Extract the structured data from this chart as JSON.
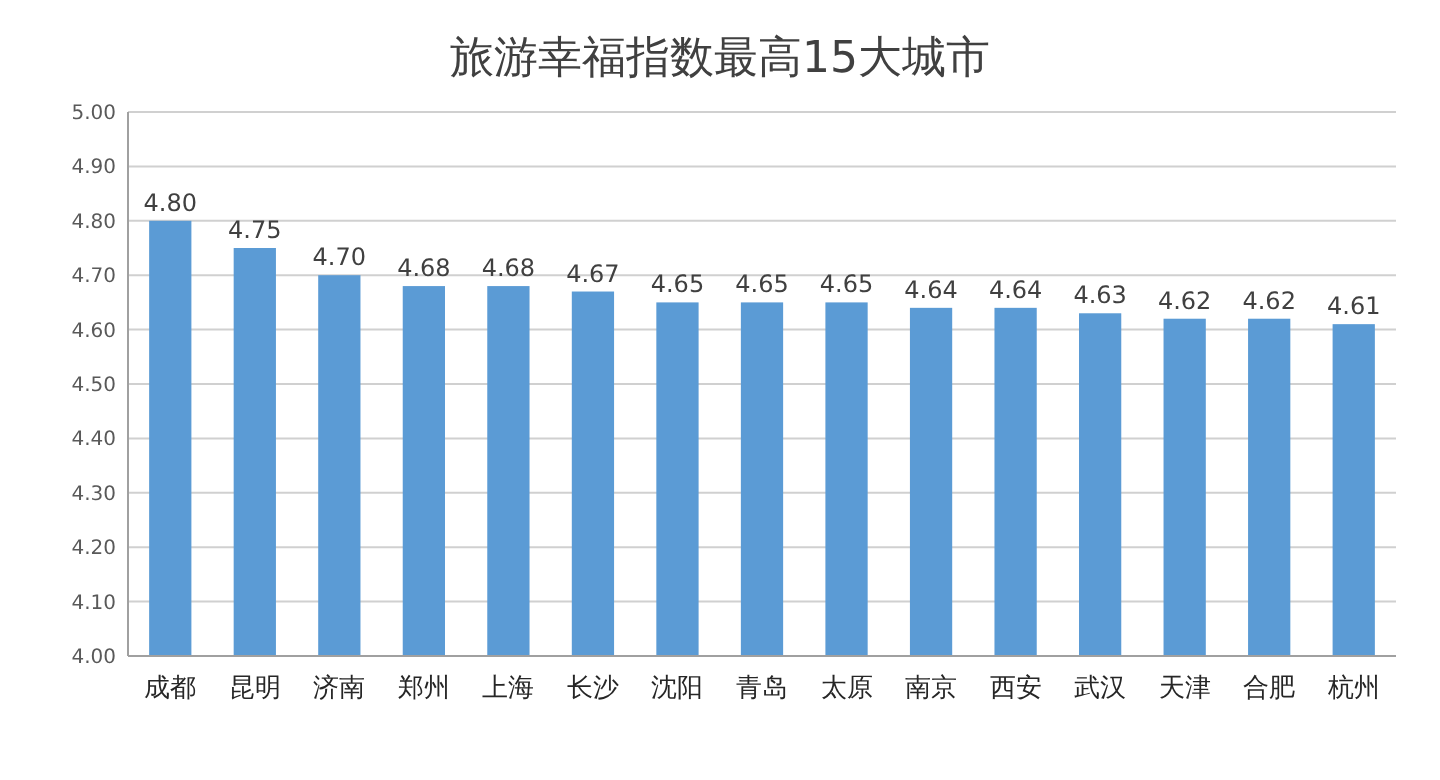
{
  "chart_data": {
    "type": "bar",
    "title": "旅游幸福指数最高15大城市",
    "categories": [
      "成都",
      "昆明",
      "济南",
      "郑州",
      "上海",
      "长沙",
      "沈阳",
      "青岛",
      "太原",
      "南京",
      "西安",
      "武汉",
      "天津",
      "合肥",
      "杭州"
    ],
    "values": [
      4.8,
      4.75,
      4.7,
      4.68,
      4.68,
      4.67,
      4.65,
      4.65,
      4.65,
      4.64,
      4.64,
      4.63,
      4.62,
      4.62,
      4.61
    ],
    "value_labels": [
      "4.80",
      "4.75",
      "4.70",
      "4.68",
      "4.68",
      "4.67",
      "4.65",
      "4.65",
      "4.65",
      "4.64",
      "4.64",
      "4.63",
      "4.62",
      "4.62",
      "4.61"
    ],
    "color": "#5b9bd5",
    "ylim": [
      4,
      5
    ],
    "yticks": [
      {
        "value": 4,
        "label": "4.00"
      },
      {
        "value": 4.1,
        "label": "4.10"
      },
      {
        "value": 4.2,
        "label": "4.20"
      },
      {
        "value": 4.3,
        "label": "4.30"
      },
      {
        "value": 4.4,
        "label": "4.40"
      },
      {
        "value": 4.5,
        "label": "4.50"
      },
      {
        "value": 4.6,
        "label": "4.60"
      },
      {
        "value": 4.7,
        "label": "4.70"
      },
      {
        "value": 4.8,
        "label": "4.80"
      },
      {
        "value": 4.9,
        "label": "4.90"
      },
      {
        "value": 5,
        "label": "5.00"
      }
    ],
    "grid": "y"
  }
}
